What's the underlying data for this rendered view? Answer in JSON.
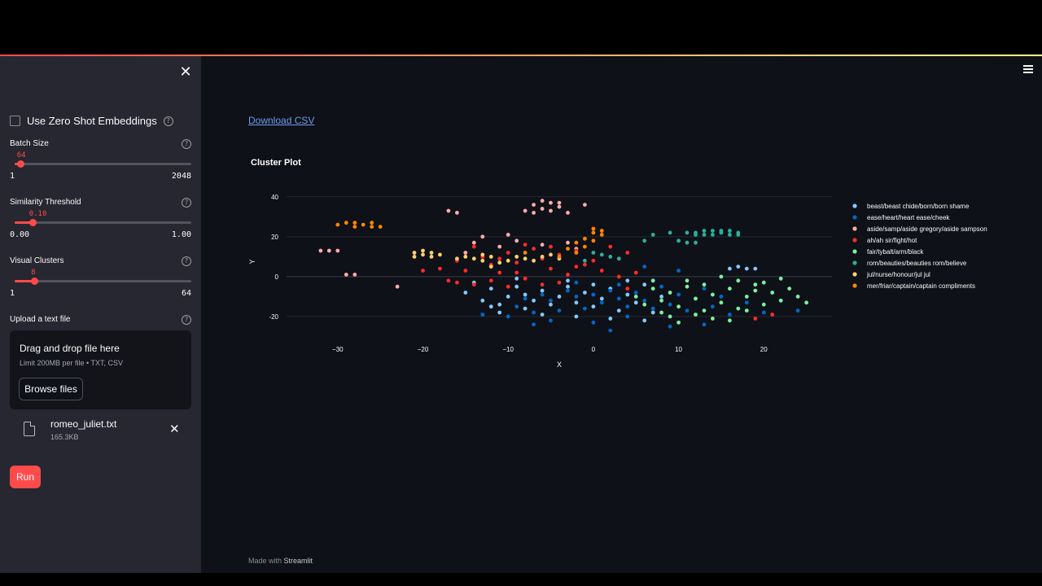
{
  "sidebar": {
    "zero_shot_label": "Use Zero Shot Embeddings",
    "batch": {
      "label": "Batch Size",
      "value": "64",
      "min": "1",
      "max": "2048",
      "fraction": 0.031
    },
    "threshold": {
      "label": "Similarity Threshold",
      "value": "0.10",
      "min": "0.00",
      "max": "1.00",
      "fraction": 0.1
    },
    "clusters": {
      "label": "Visual Clusters",
      "value": "8",
      "min": "1",
      "max": "64",
      "fraction": 0.111
    },
    "upload": {
      "label": "Upload a text file",
      "drop_title": "Drag and drop file here",
      "limit": "Limit 200MB per file • TXT, CSV",
      "browse_label": "Browse files",
      "file_name": "romeo_juliet.txt",
      "file_size": "165.3KB"
    },
    "run_label": "Run"
  },
  "main": {
    "download_label": "Download CSV",
    "footer_prefix": "Made with",
    "footer_brand": "Streamlit"
  },
  "chart_data": {
    "type": "scatter",
    "title": "Cluster Plot",
    "xlabel": "X",
    "ylabel": "Y",
    "xlim": [
      -36,
      28
    ],
    "ylim": [
      -29,
      44
    ],
    "x_ticks": [
      -30,
      -20,
      -10,
      0,
      10,
      20
    ],
    "y_ticks": [
      -20,
      0,
      20,
      40
    ],
    "grid": true,
    "legend_position": "right",
    "series": [
      {
        "name": "beast/beast chide/born/born shame",
        "color": "#83c9ff",
        "points": [
          [
            -15,
            -8
          ],
          [
            -13,
            -12
          ],
          [
            -12,
            -6
          ],
          [
            -11,
            -14
          ],
          [
            -10,
            -10
          ],
          [
            -9,
            -5
          ],
          [
            -8,
            -16
          ],
          [
            -8,
            -9
          ],
          [
            -7,
            -12
          ],
          [
            -6,
            -7
          ],
          [
            -5,
            -14
          ],
          [
            -4,
            -10
          ],
          [
            -3,
            -5
          ],
          [
            -2,
            -13
          ],
          [
            -1,
            -8
          ],
          [
            0,
            -15
          ],
          [
            1,
            -11
          ],
          [
            2,
            -6
          ],
          [
            3,
            -17
          ],
          [
            4,
            -9
          ],
          [
            5,
            -13
          ],
          [
            6,
            -4
          ],
          [
            7,
            -18
          ],
          [
            8,
            -10
          ],
          [
            -14,
            -3
          ],
          [
            -11,
            -18
          ],
          [
            -6,
            -19
          ],
          [
            -2,
            -20
          ],
          [
            2,
            -21
          ],
          [
            6,
            -22
          ],
          [
            17,
            5
          ],
          [
            18,
            4
          ],
          [
            19,
            4
          ],
          [
            16,
            4
          ],
          [
            -3,
            -2
          ],
          [
            -9,
            -1
          ],
          [
            4,
            -2
          ],
          [
            -12,
            -15
          ],
          [
            0,
            -4
          ]
        ]
      },
      {
        "name": "ease/heart/heart ease/cheek",
        "color": "#0068c9",
        "points": [
          [
            -9,
            -15
          ],
          [
            -8,
            -11
          ],
          [
            -7,
            -18
          ],
          [
            -6,
            -9
          ],
          [
            -5,
            -12
          ],
          [
            -4,
            -17
          ],
          [
            -3,
            -7
          ],
          [
            -2,
            -10
          ],
          [
            -1,
            -16
          ],
          [
            0,
            -9
          ],
          [
            1,
            -13
          ],
          [
            2,
            -7
          ],
          [
            3,
            -11
          ],
          [
            4,
            -15
          ],
          [
            5,
            -8
          ],
          [
            6,
            -12
          ],
          [
            7,
            -16
          ],
          [
            8,
            -5
          ],
          [
            9,
            -14
          ],
          [
            10,
            -9
          ],
          [
            11,
            -17
          ],
          [
            12,
            -11
          ],
          [
            13,
            -6
          ],
          [
            14,
            -15
          ],
          [
            15,
            -10
          ],
          [
            16,
            -19
          ],
          [
            18,
            -13
          ],
          [
            20,
            -18
          ],
          [
            22,
            -12
          ],
          [
            -10,
            -20
          ],
          [
            -5,
            -22
          ],
          [
            0,
            -23
          ],
          [
            4,
            -20
          ],
          [
            9,
            -25
          ],
          [
            13,
            -24
          ],
          [
            3,
            -4
          ],
          [
            -2,
            -3
          ],
          [
            7,
            -2
          ],
          [
            10,
            3
          ],
          [
            6,
            5
          ],
          [
            2,
            -27
          ],
          [
            -7,
            -24
          ],
          [
            -13,
            -19
          ],
          [
            24,
            -17
          ]
        ]
      },
      {
        "name": "aside/samp/aside gregory/aside sampson",
        "color": "#ffabab",
        "points": [
          [
            -31,
            13
          ],
          [
            -32,
            13
          ],
          [
            -30,
            13
          ],
          [
            -29,
            1
          ],
          [
            -28,
            1
          ],
          [
            -23,
            -5
          ],
          [
            -17,
            33
          ],
          [
            -16,
            32
          ],
          [
            -8,
            33
          ],
          [
            -7,
            36
          ],
          [
            -6,
            38
          ],
          [
            -5,
            37
          ],
          [
            -4,
            35
          ],
          [
            -5,
            33
          ],
          [
            -3,
            32
          ],
          [
            -6,
            34
          ],
          [
            -4,
            37
          ],
          [
            -7,
            32
          ],
          [
            -1,
            36
          ],
          [
            -13,
            20
          ],
          [
            -14,
            17
          ],
          [
            -11,
            15
          ],
          [
            -9,
            18
          ],
          [
            -6,
            16
          ],
          [
            -3,
            17
          ],
          [
            -15,
            12
          ],
          [
            -10,
            21
          ],
          [
            -2,
            14
          ]
        ]
      },
      {
        "name": "ah/ah sir/fight/hot",
        "color": "#ff2b2b",
        "points": [
          [
            -18,
            4
          ],
          [
            -17,
            -2
          ],
          [
            -16,
            8
          ],
          [
            -15,
            3
          ],
          [
            -14,
            -4
          ],
          [
            -13,
            10
          ],
          [
            -12,
            6
          ],
          [
            -11,
            2
          ],
          [
            -10,
            12
          ],
          [
            -9,
            7
          ],
          [
            -8,
            -1
          ],
          [
            -7,
            14
          ],
          [
            -6,
            9
          ],
          [
            -5,
            4
          ],
          [
            -4,
            11
          ],
          [
            -3,
            1
          ],
          [
            -2,
            13
          ],
          [
            -1,
            6
          ],
          [
            0,
            8
          ],
          [
            1,
            3
          ],
          [
            2,
            15
          ],
          [
            3,
            9
          ],
          [
            4,
            -6
          ],
          [
            5,
            2
          ],
          [
            -12,
            -2
          ],
          [
            -8,
            16
          ],
          [
            -4,
            -3
          ],
          [
            -14,
            15
          ],
          [
            -9,
            2
          ],
          [
            -6,
            -4
          ],
          [
            -10,
            -5
          ],
          [
            -2,
            5
          ],
          [
            4,
            12
          ],
          [
            19,
            -21
          ],
          [
            21,
            -19
          ],
          [
            -20,
            3
          ],
          [
            -5,
            15
          ],
          [
            -16,
            -3
          ],
          [
            -11,
            9
          ],
          [
            3,
            0
          ]
        ]
      },
      {
        "name": "fair/tybalt/arm/black",
        "color": "#7defa1",
        "points": [
          [
            5,
            -10
          ],
          [
            6,
            -14
          ],
          [
            7,
            -6
          ],
          [
            8,
            -12
          ],
          [
            9,
            -8
          ],
          [
            10,
            -15
          ],
          [
            11,
            -5
          ],
          [
            12,
            -11
          ],
          [
            13,
            -17
          ],
          [
            14,
            -9
          ],
          [
            15,
            -13
          ],
          [
            16,
            -6
          ],
          [
            17,
            -16
          ],
          [
            18,
            -10
          ],
          [
            19,
            -4
          ],
          [
            20,
            -14
          ],
          [
            21,
            -8
          ],
          [
            22,
            -12
          ],
          [
            23,
            -6
          ],
          [
            24,
            -10
          ],
          [
            11,
            -2
          ],
          [
            13,
            -4
          ],
          [
            15,
            0
          ],
          [
            17,
            -2
          ],
          [
            19,
            -7
          ],
          [
            12,
            -19
          ],
          [
            14,
            -21
          ],
          [
            10,
            -23
          ],
          [
            16,
            -22
          ],
          [
            18,
            -17
          ],
          [
            20,
            -3
          ],
          [
            22,
            -1
          ],
          [
            7,
            -2
          ],
          [
            8,
            -18
          ],
          [
            25,
            -13
          ],
          [
            9,
            -20
          ]
        ]
      },
      {
        "name": "rom/beauties/beauties rom/believe",
        "color": "#29b09d",
        "points": [
          [
            12,
            22
          ],
          [
            13,
            21
          ],
          [
            14,
            23
          ],
          [
            15,
            22
          ],
          [
            16,
            21
          ],
          [
            17,
            22
          ],
          [
            13,
            23
          ],
          [
            14,
            21
          ],
          [
            15,
            23
          ],
          [
            16,
            23
          ],
          [
            12,
            21
          ],
          [
            17,
            21
          ],
          [
            11,
            22
          ],
          [
            7,
            21
          ],
          [
            9,
            22
          ],
          [
            10,
            18
          ],
          [
            11,
            17
          ],
          [
            12,
            17
          ],
          [
            6,
            18
          ],
          [
            1,
            11
          ],
          [
            2,
            10
          ],
          [
            0,
            12
          ],
          [
            3,
            9
          ],
          [
            -1,
            8
          ]
        ]
      },
      {
        "name": "jul/nurse/honour/jul jul",
        "color": "#ffd16a",
        "points": [
          [
            -21,
            12
          ],
          [
            -20,
            11
          ],
          [
            -19,
            12
          ],
          [
            -18,
            11
          ],
          [
            -21,
            10
          ],
          [
            -20,
            13
          ],
          [
            -19,
            10
          ],
          [
            -15,
            10
          ],
          [
            -14,
            9
          ],
          [
            -13,
            8
          ],
          [
            -12,
            10
          ],
          [
            -11,
            7
          ],
          [
            -16,
            9
          ],
          [
            -13,
            11
          ],
          [
            -10,
            8
          ],
          [
            -9,
            10
          ],
          [
            -8,
            9
          ],
          [
            -7,
            8
          ],
          [
            -6,
            10
          ],
          [
            -5,
            11
          ],
          [
            -4,
            9
          ],
          [
            -12,
            5
          ]
        ]
      },
      {
        "name": "mer/friar/captain/captain compliments",
        "color": "#ff8700",
        "points": [
          [
            -30,
            26
          ],
          [
            -29,
            27
          ],
          [
            -28,
            25
          ],
          [
            -27,
            26
          ],
          [
            -26,
            27
          ],
          [
            -25,
            25
          ],
          [
            -28,
            27
          ],
          [
            -26,
            25
          ],
          [
            0,
            24
          ],
          [
            1,
            23
          ],
          [
            0,
            22
          ],
          [
            1,
            21
          ],
          [
            -1,
            19
          ],
          [
            -2,
            17
          ],
          [
            0,
            18
          ],
          [
            -1,
            15
          ],
          [
            -2,
            12
          ],
          [
            -3,
            14
          ],
          [
            -4,
            10
          ],
          [
            -8,
            12
          ]
        ]
      }
    ]
  }
}
